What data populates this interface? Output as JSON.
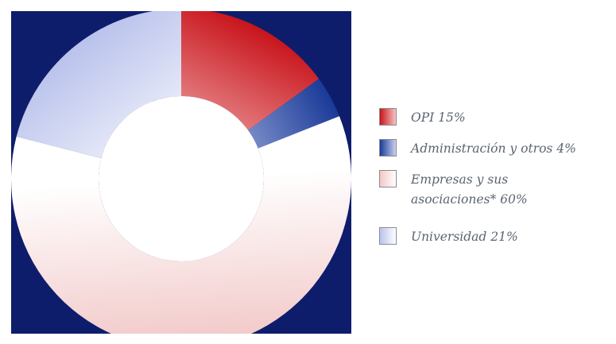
{
  "chart_data": {
    "type": "pie",
    "donut": true,
    "title": "",
    "start": "top, clockwise",
    "slices": [
      {
        "label": "OPI",
        "value": 15,
        "legend_text": "OPI 15%",
        "color": "#c8141b",
        "light": "#f6c4c4"
      },
      {
        "label": "Administración y otros",
        "value": 4,
        "legend_text": "Administración y otros 4%",
        "color": "#1a3a98",
        "light": "#c9d1f0"
      },
      {
        "label": "Empresas y sus asociaciones*",
        "value": 60,
        "legend_text": "Empresas y sus\nasociaciones* 60%",
        "color": "#f2c7c7",
        "light": "#ffffff"
      },
      {
        "label": "Universidad",
        "value": 21,
        "legend_text": "Universidad 21%",
        "color": "#b9c2ec",
        "light": "#ffffff"
      }
    ],
    "legend_placement": "right",
    "background": "#0e1d6b"
  }
}
